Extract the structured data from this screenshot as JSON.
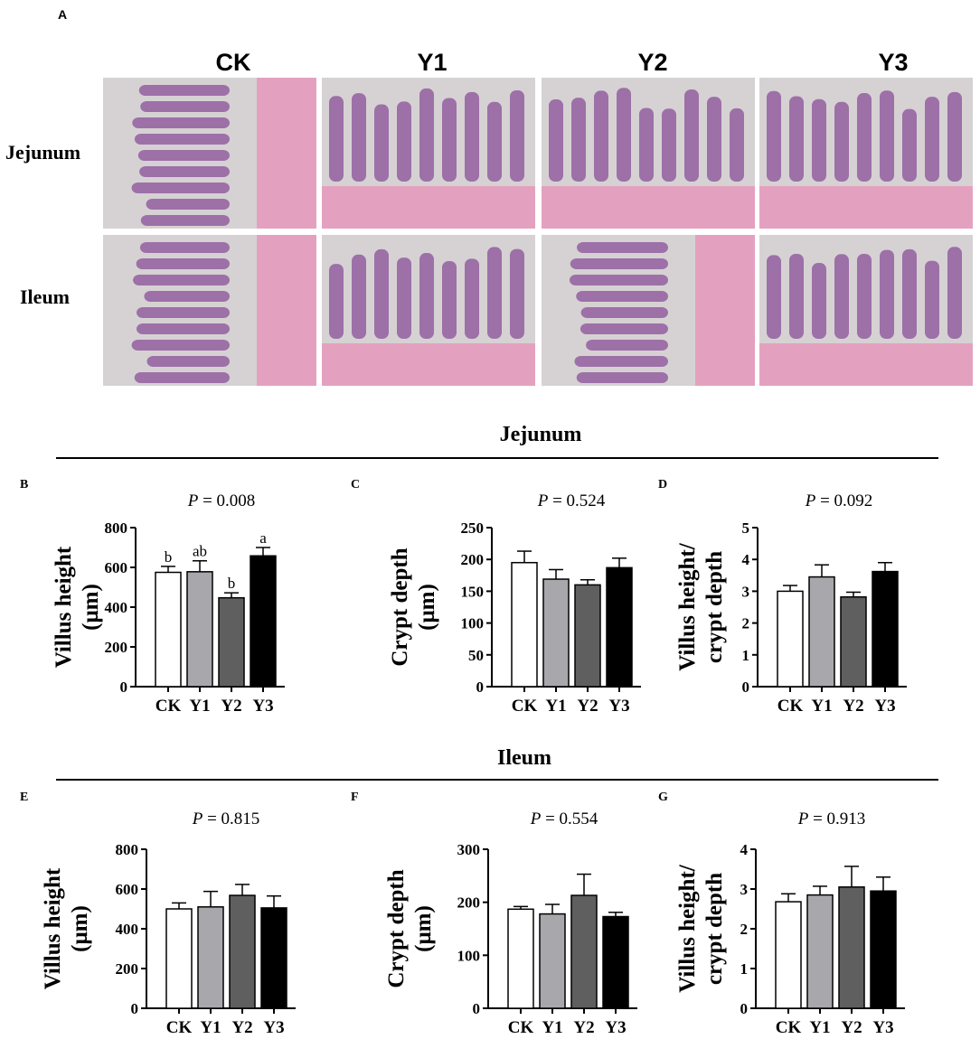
{
  "figure": {
    "panel_a_letter": "A",
    "histology": {
      "columns": [
        "CK",
        "Y1",
        "Y2",
        "Y3"
      ],
      "rows": [
        "Jejunum",
        "Ileum"
      ]
    },
    "sections": [
      {
        "title": "Jejunum"
      },
      {
        "title": "Ileum"
      }
    ]
  },
  "colors": {
    "CK": "#ffffff",
    "Y1": "#a8a8ac",
    "Y2": "#5f5f5f",
    "Y3": "#000000",
    "tissue_pink": "#e59bbd",
    "tissue_purple": "#8a4f9a",
    "background_gray": "#d6d2d3"
  },
  "chart_data": [
    {
      "panel": "B",
      "type": "bar",
      "section": "Jejunum",
      "title_p": "P",
      "title_rest": " = 0.008",
      "ylabel": [
        "Villus height",
        "(μm)"
      ],
      "categories": [
        "CK",
        "Y1",
        "Y2",
        "Y3"
      ],
      "values": [
        575,
        578,
        447,
        658
      ],
      "errors": [
        30,
        55,
        25,
        42
      ],
      "letters": [
        "b",
        "ab",
        "b",
        "a"
      ],
      "ylim": [
        0,
        800
      ],
      "yticks": [
        0,
        200,
        400,
        600,
        800
      ]
    },
    {
      "panel": "C",
      "type": "bar",
      "section": "Jejunum",
      "title_p": "P",
      "title_rest": " = 0.524",
      "ylabel": [
        "Crypt depth",
        "(μm)"
      ],
      "categories": [
        "CK",
        "Y1",
        "Y2",
        "Y3"
      ],
      "values": [
        195,
        169,
        160,
        187
      ],
      "errors": [
        18,
        15,
        8,
        15
      ],
      "ylim": [
        0,
        250
      ],
      "yticks": [
        0,
        50,
        100,
        150,
        200,
        250
      ]
    },
    {
      "panel": "D",
      "type": "bar",
      "section": "Jejunum",
      "title_p": "P",
      "title_rest": " = 0.092",
      "ylabel": [
        "Villus height/",
        "crypt depth"
      ],
      "categories": [
        "CK",
        "Y1",
        "Y2",
        "Y3"
      ],
      "values": [
        3.0,
        3.45,
        2.82,
        3.62
      ],
      "errors": [
        0.18,
        0.38,
        0.15,
        0.28
      ],
      "ylim": [
        0,
        5
      ],
      "yticks": [
        0,
        1,
        2,
        3,
        4,
        5
      ]
    },
    {
      "panel": "E",
      "type": "bar",
      "section": "Ileum",
      "title_p": "P",
      "title_rest": " = 0.815",
      "ylabel": [
        "Villus height",
        "(μm)"
      ],
      "categories": [
        "CK",
        "Y1",
        "Y2",
        "Y3"
      ],
      "values": [
        500,
        510,
        568,
        505
      ],
      "errors": [
        30,
        78,
        55,
        60
      ],
      "ylim": [
        0,
        800
      ],
      "yticks": [
        0,
        200,
        400,
        600,
        800
      ]
    },
    {
      "panel": "F",
      "type": "bar",
      "section": "Ileum",
      "title_p": "P",
      "title_rest": " = 0.554",
      "ylabel": [
        "Crypt depth",
        "(μm)"
      ],
      "categories": [
        "CK",
        "Y1",
        "Y2",
        "Y3"
      ],
      "values": [
        187,
        178,
        213,
        173
      ],
      "errors": [
        5,
        18,
        40,
        8
      ],
      "ylim": [
        0,
        300
      ],
      "yticks": [
        0,
        100,
        200,
        300
      ]
    },
    {
      "panel": "G",
      "type": "bar",
      "section": "Ileum",
      "title_p": "P",
      "title_rest": " = 0.913",
      "ylabel": [
        "Villus height/",
        "crypt depth"
      ],
      "categories": [
        "CK",
        "Y1",
        "Y2",
        "Y3"
      ],
      "values": [
        2.68,
        2.85,
        3.05,
        2.95
      ],
      "errors": [
        0.2,
        0.22,
        0.52,
        0.35
      ],
      "ylim": [
        0,
        4
      ],
      "yticks": [
        0,
        1,
        2,
        3,
        4
      ]
    }
  ]
}
